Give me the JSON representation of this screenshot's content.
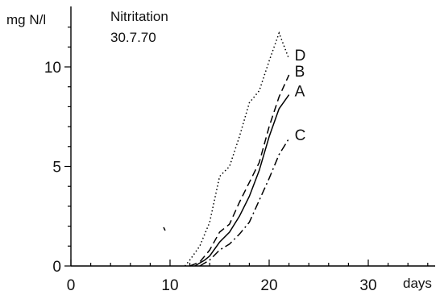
{
  "chart_data": {
    "type": "line",
    "title": "Nitritation",
    "subtitle": "30.7.70",
    "ylabel": "mg N/l",
    "xlabel": "days",
    "xlim": [
      0,
      37
    ],
    "ylim": [
      0,
      12.5
    ],
    "x_ticks": [
      0,
      10,
      20,
      30
    ],
    "y_ticks": [
      0,
      5,
      10
    ],
    "grid": false,
    "series": [
      {
        "name": "D",
        "style": "dotted",
        "x": [
          11.5,
          12,
          13,
          14,
          15,
          16,
          17,
          18,
          19,
          20,
          21,
          22
        ],
        "y": [
          0,
          0.3,
          1,
          2.2,
          4.5,
          5,
          6.5,
          8.2,
          8.8,
          10.3,
          11.7,
          10.4
        ]
      },
      {
        "name": "B",
        "style": "dashed",
        "x": [
          12,
          13,
          14,
          15,
          16,
          17,
          18,
          19,
          20,
          21,
          22
        ],
        "y": [
          0,
          0.2,
          0.8,
          1.7,
          2.1,
          3.2,
          4.2,
          5.2,
          7,
          8.5,
          9.6
        ]
      },
      {
        "name": "A",
        "style": "solid",
        "x": [
          12.5,
          13.5,
          14,
          15,
          16,
          17,
          18,
          19,
          20,
          21,
          22
        ],
        "y": [
          0,
          0.3,
          0.5,
          1.2,
          1.7,
          2.5,
          3.5,
          4.8,
          6.5,
          7.9,
          8.6
        ]
      },
      {
        "name": "C",
        "style": "dashdot",
        "x": [
          13,
          14,
          15,
          16,
          17,
          18,
          19,
          20,
          21,
          22
        ],
        "y": [
          0,
          0.3,
          0.8,
          1.1,
          1.6,
          2.2,
          3.3,
          4.4,
          5.6,
          6.4
        ]
      }
    ]
  }
}
